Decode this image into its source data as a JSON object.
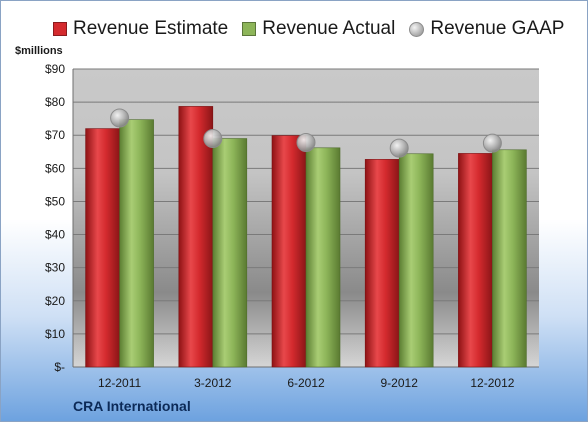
{
  "legend": {
    "estimate": "Revenue Estimate",
    "actual": "Revenue Actual",
    "gaap": "Revenue GAAP"
  },
  "unit_label": "$millions",
  "company": "CRA International",
  "colors": {
    "estimate": "#d42a2e",
    "actual": "#8db559",
    "gaap": "#b5b5b5"
  },
  "chart_data": {
    "type": "bar",
    "categories": [
      "12-2011",
      "3-2012",
      "6-2012",
      "9-2012",
      "12-2012"
    ],
    "series": [
      {
        "name": "Revenue Estimate",
        "type": "bar",
        "values": [
          72,
          78.7,
          69.9,
          62.7,
          64.5
        ]
      },
      {
        "name": "Revenue Actual",
        "type": "bar",
        "values": [
          74.7,
          69,
          66.2,
          64.4,
          65.6
        ]
      },
      {
        "name": "Revenue GAAP",
        "type": "scatter",
        "values": [
          75.2,
          69,
          67.8,
          66.1,
          67.6
        ]
      }
    ],
    "yticks": [
      "$-",
      "$10",
      "$20",
      "$30",
      "$40",
      "$50",
      "$60",
      "$70",
      "$80",
      "$90"
    ],
    "ylim": [
      0,
      90
    ],
    "ylabel": "$millions",
    "grid": true,
    "legend": "top"
  }
}
